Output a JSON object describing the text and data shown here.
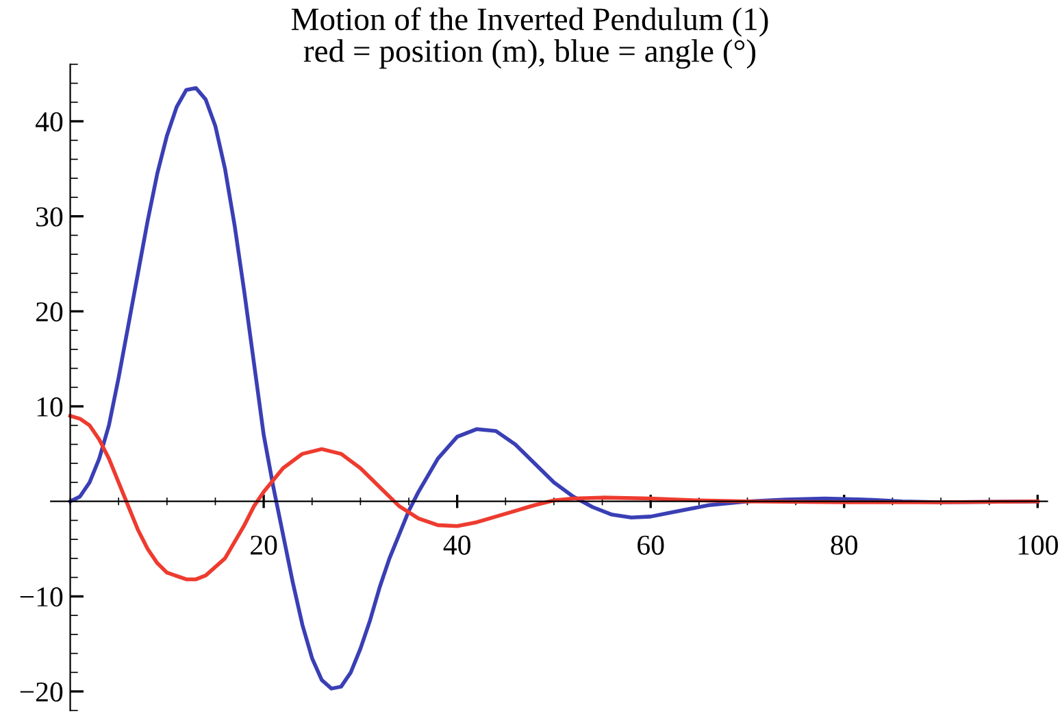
{
  "chart_data": {
    "type": "line",
    "title": "Motion of the Inverted Pendulum (1)",
    "subtitle": "red = position (m), blue = angle (°)",
    "xlim": [
      -2,
      101
    ],
    "ylim": [
      -22,
      46
    ],
    "xticks": [
      20,
      40,
      60,
      80,
      100
    ],
    "yticks": [
      -20,
      -10,
      10,
      20,
      30,
      40
    ],
    "grid": false,
    "legend": false,
    "marker": "none",
    "line_style": "solid",
    "series": [
      {
        "color": "#3a3fb5",
        "x": [
          0,
          1,
          2,
          3,
          4,
          5,
          6,
          7,
          8,
          9,
          10,
          11,
          12,
          13,
          14,
          15,
          16,
          17,
          18,
          19,
          20,
          21,
          22,
          23,
          24,
          25,
          26,
          27,
          28,
          29,
          30,
          31,
          32,
          33,
          34,
          35,
          36,
          38,
          40,
          42,
          44,
          46,
          48,
          50,
          52,
          54,
          56,
          58,
          60,
          62,
          64,
          66,
          70,
          74,
          78,
          82,
          86,
          90,
          100
        ],
        "values": [
          0,
          0.5,
          2,
          4.5,
          8,
          13,
          18.5,
          24,
          29.5,
          34.5,
          38.5,
          41.5,
          43.3,
          43.5,
          42.3,
          39.5,
          35,
          29,
          22,
          14.5,
          7,
          1.5,
          -3.5,
          -8.5,
          -13,
          -16.5,
          -18.8,
          -19.7,
          -19.5,
          -18,
          -15.5,
          -12.5,
          -9,
          -6,
          -3.5,
          -1,
          1,
          4.5,
          6.8,
          7.6,
          7.4,
          6,
          4,
          2,
          0.5,
          -0.6,
          -1.4,
          -1.7,
          -1.6,
          -1.2,
          -0.8,
          -0.4,
          0,
          0.2,
          0.3,
          0.2,
          0,
          -0.1,
          0
        ]
      },
      {
        "color": "#ee3b2f",
        "x": [
          0,
          1,
          2,
          3,
          4,
          5,
          6,
          7,
          8,
          9,
          10,
          12,
          13,
          14,
          16,
          18,
          19,
          20,
          22,
          24,
          26,
          28,
          30,
          32,
          34,
          36,
          38,
          40,
          42,
          44,
          46,
          48,
          50,
          52,
          55,
          60,
          65,
          70,
          80,
          90,
          100
        ],
        "values": [
          9,
          8.7,
          8,
          6.5,
          4.5,
          2,
          -0.5,
          -3,
          -5,
          -6.5,
          -7.5,
          -8.2,
          -8.2,
          -7.8,
          -6,
          -2.5,
          -0.5,
          1,
          3.5,
          5,
          5.5,
          5,
          3.5,
          1.5,
          -0.5,
          -1.8,
          -2.5,
          -2.6,
          -2.2,
          -1.6,
          -1,
          -0.4,
          0.1,
          0.3,
          0.4,
          0.3,
          0.1,
          0,
          -0.1,
          -0.1,
          0
        ]
      }
    ]
  }
}
